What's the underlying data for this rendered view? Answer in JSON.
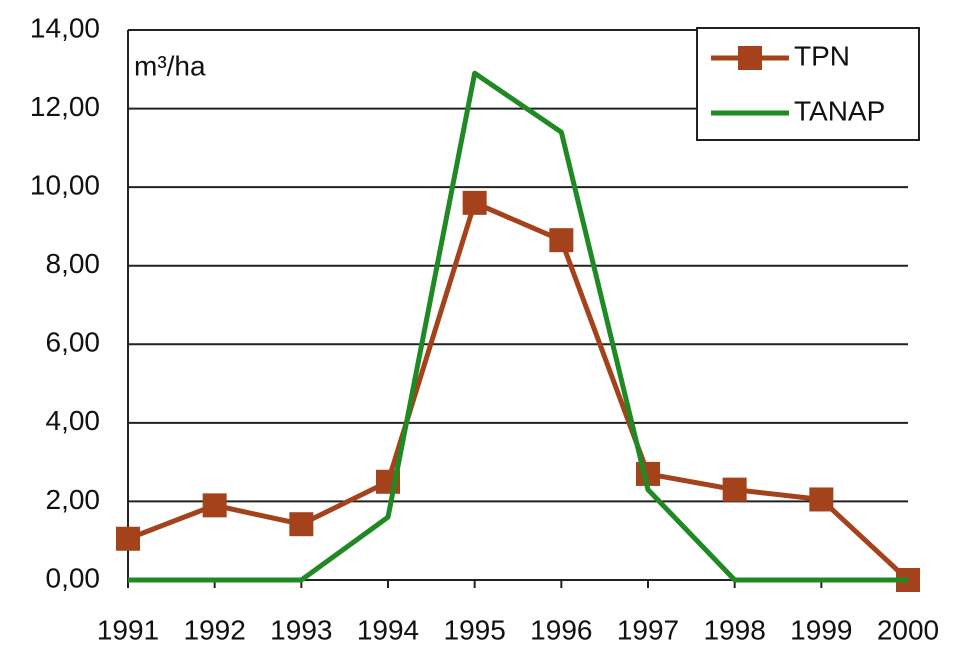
{
  "chart_data": {
    "type": "line",
    "y_label": "m³/ha",
    "x": [
      1991,
      1992,
      1993,
      1994,
      1995,
      1996,
      1997,
      1998,
      1999,
      2000
    ],
    "xlim": [
      1991,
      2000
    ],
    "xticks": [
      1991,
      1992,
      1993,
      1994,
      1995,
      1996,
      1997,
      1998,
      1999,
      2000
    ],
    "ylim": [
      0,
      14
    ],
    "yticks": [
      {
        "value": 0,
        "label": "0,00"
      },
      {
        "value": 2,
        "label": "2,00"
      },
      {
        "value": 4,
        "label": "4,00"
      },
      {
        "value": 6,
        "label": "6,00"
      },
      {
        "value": 8,
        "label": "8,00"
      },
      {
        "value": 10,
        "label": "10,00"
      },
      {
        "value": 12,
        "label": "12,00"
      },
      {
        "value": 14,
        "label": "14,00"
      }
    ],
    "grid": true,
    "legend": "top-right",
    "series": [
      {
        "name": "TPN",
        "color": "#a4431b",
        "marker": "square",
        "values": [
          1.05,
          1.9,
          1.42,
          2.5,
          9.6,
          8.65,
          2.7,
          2.3,
          2.05,
          0
        ]
      },
      {
        "name": "TANAP",
        "color": "#1f8a24",
        "values": [
          0,
          0,
          0,
          1.6,
          12.9,
          11.4,
          2.3,
          0,
          0,
          0
        ]
      }
    ]
  }
}
